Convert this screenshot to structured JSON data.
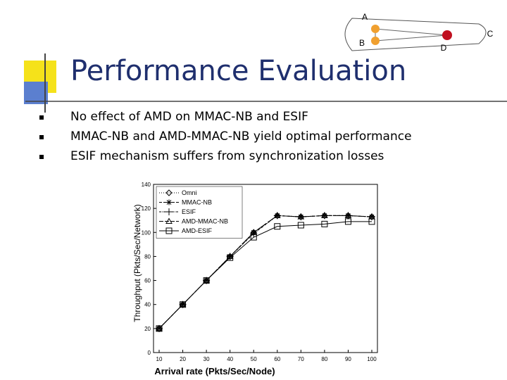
{
  "slide": {
    "title": "Performance Evaluation",
    "bullets": [
      "No effect of AMD on MMAC-NB and ESIF",
      "MMAC-NB and AMD-MMAC-NB yield optimal performance",
      "ESIF mechanism suffers from synchronization losses"
    ]
  },
  "diagram": {
    "labels": [
      "A",
      "B",
      "C",
      "D"
    ]
  },
  "chart_data": {
    "type": "line",
    "x_label": "Arrival rate (Pkts/Sec/Node)",
    "y_label": "Throughput (Pkts/Sec/Network)",
    "x": [
      10,
      20,
      30,
      40,
      50,
      60,
      70,
      80,
      90,
      100
    ],
    "xlim": [
      10,
      100
    ],
    "xticks": [
      10,
      20,
      30,
      40,
      50,
      60,
      70,
      80,
      90,
      100
    ],
    "ylim": [
      0,
      140
    ],
    "yticks": [
      0,
      20,
      40,
      60,
      80,
      100,
      120,
      140
    ],
    "legend": "upper left",
    "series": [
      {
        "name": "Omni",
        "color": "#000000",
        "marker": "diamond",
        "values": [
          20,
          40,
          60,
          80,
          100,
          114,
          113,
          114,
          114,
          113
        ]
      },
      {
        "name": "MMAC-NB",
        "color": "#000000",
        "marker": "star",
        "values": [
          20,
          40,
          60,
          80,
          100,
          114,
          113,
          114,
          114,
          113
        ]
      },
      {
        "name": "ESIF",
        "color": "#000000",
        "marker": "plus",
        "values": [
          20,
          40,
          60,
          80,
          99,
          114,
          113,
          114,
          114,
          113
        ]
      },
      {
        "name": "AMD-MMAC-NB",
        "color": "#000000",
        "marker": "triangle",
        "values": [
          20,
          40,
          60,
          80,
          100,
          114,
          113,
          114,
          114,
          113
        ]
      },
      {
        "name": "AMD-ESIF",
        "color": "#000000",
        "marker": "square",
        "values": [
          20,
          40,
          60,
          79,
          96,
          105,
          106,
          107,
          109,
          109
        ]
      }
    ]
  }
}
